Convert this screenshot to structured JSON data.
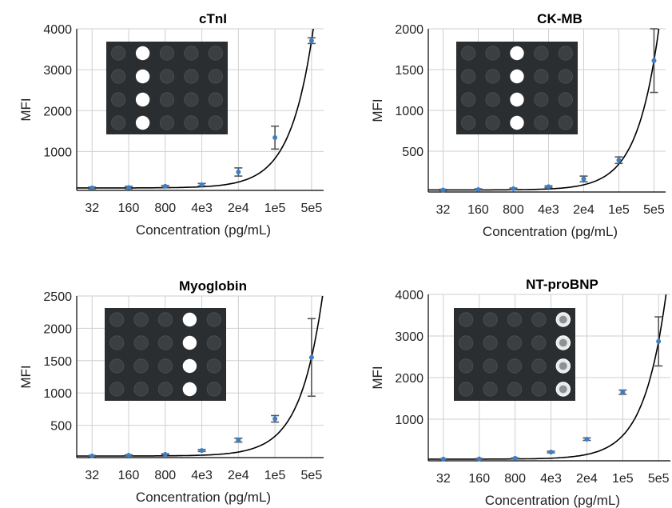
{
  "chart_data": [
    {
      "type": "scatter",
      "title": "cTnI",
      "xlabel": "Concentration (pg/mL)",
      "ylabel": "MFI",
      "x_scale": "log",
      "categories": [
        "32",
        "160",
        "800",
        "4e3",
        "2e4",
        "1e5",
        "5e5"
      ],
      "x": [
        32,
        160,
        800,
        4000,
        20000,
        100000,
        500000
      ],
      "y": [
        110,
        120,
        150,
        190,
        500,
        1340,
        3710
      ],
      "error": [
        20,
        30,
        20,
        30,
        100,
        280,
        70
      ],
      "yticks": [
        1000,
        2000,
        3000,
        4000
      ],
      "ylim": [
        50,
        4000
      ],
      "grid": true,
      "fit_curve": true,
      "inset": {
        "rows": 4,
        "cols": 5,
        "bright_col": 1,
        "style": "solid"
      }
    },
    {
      "type": "scatter",
      "title": "CK-MB",
      "xlabel": "Concentration (pg/mL)",
      "ylabel": "MFI",
      "x_scale": "log",
      "categories": [
        "32",
        "160",
        "800",
        "4e3",
        "2e4",
        "1e5",
        "5e5"
      ],
      "x": [
        32,
        160,
        800,
        4000,
        20000,
        100000,
        500000
      ],
      "y": [
        25,
        30,
        40,
        65,
        160,
        390,
        1610
      ],
      "error": [
        8,
        8,
        8,
        10,
        35,
        40,
        390
      ],
      "yticks": [
        500,
        1000,
        1500,
        2000
      ],
      "ylim": [
        0,
        2000
      ],
      "grid": true,
      "fit_curve": true,
      "inset": {
        "rows": 4,
        "cols": 5,
        "bright_col": 2,
        "style": "solid"
      }
    },
    {
      "type": "scatter",
      "title": "Myoglobin",
      "xlabel": "Concentration (pg/mL)",
      "ylabel": "MFI",
      "x_scale": "log",
      "categories": [
        "32",
        "160",
        "800",
        "4e3",
        "2e4",
        "1e5",
        "5e5"
      ],
      "x": [
        32,
        160,
        800,
        4000,
        20000,
        100000,
        500000
      ],
      "y": [
        25,
        35,
        50,
        110,
        270,
        600,
        1550
      ],
      "error": [
        8,
        8,
        8,
        15,
        30,
        50,
        600
      ],
      "yticks": [
        500,
        1000,
        1500,
        2000,
        2500
      ],
      "ylim": [
        0,
        2500
      ],
      "grid": true,
      "fit_curve": true,
      "inset": {
        "rows": 4,
        "cols": 5,
        "bright_col": 3,
        "style": "solid"
      }
    },
    {
      "type": "scatter",
      "title": "NT-proBNP",
      "xlabel": "Concentration (pg/mL)",
      "ylabel": "MFI",
      "x_scale": "log",
      "categories": [
        "32",
        "160",
        "800",
        "4e3",
        "2e4",
        "1e5",
        "5e5"
      ],
      "x": [
        32,
        160,
        800,
        4000,
        20000,
        100000,
        500000
      ],
      "y": [
        40,
        45,
        60,
        210,
        520,
        1650,
        2870
      ],
      "error": [
        10,
        10,
        10,
        20,
        30,
        50,
        590
      ],
      "yticks": [
        1000,
        2000,
        3000,
        4000
      ],
      "ylim": [
        0,
        4000
      ],
      "grid": true,
      "fit_curve": true,
      "inset": {
        "rows": 4,
        "cols": 5,
        "bright_col": 4,
        "style": "ring"
      }
    }
  ],
  "colors": {
    "data_point": "#3a7fc8",
    "error_bar": "#555555",
    "fit_curve": "#000000",
    "grid": "#cfcfcf",
    "inset_background": "#2b2e30"
  }
}
